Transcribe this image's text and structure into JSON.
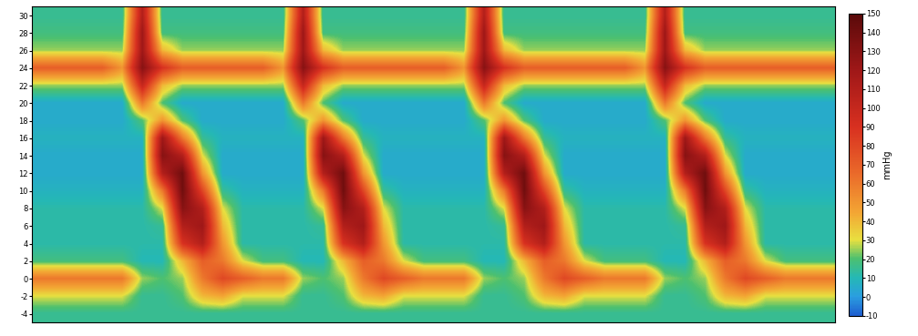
{
  "chart_data": {
    "type": "heatmap",
    "x": [
      2,
      6,
      10,
      14,
      18,
      22,
      26,
      30,
      34,
      38,
      42,
      46,
      50,
      54,
      58,
      62,
      66,
      70,
      74,
      78,
      82,
      86,
      90,
      94,
      98,
      102,
      106,
      110,
      114,
      118,
      122,
      126,
      130,
      134,
      138,
      142,
      146,
      150,
      154,
      158
    ],
    "y": [
      30,
      28,
      26,
      24,
      22,
      20,
      18,
      16,
      14,
      12,
      10,
      8,
      6,
      4,
      2,
      0,
      -2,
      -4
    ],
    "cells": [
      [
        15,
        15,
        15,
        15,
        15,
        110,
        15,
        15,
        15,
        15,
        15,
        15,
        15,
        110,
        15,
        15,
        15,
        15,
        15,
        15,
        15,
        15,
        110,
        15,
        15,
        15,
        15,
        15,
        15,
        15,
        15,
        110,
        15,
        15,
        15,
        15,
        15,
        15,
        15,
        15
      ],
      [
        18,
        18,
        18,
        18,
        18,
        120,
        18,
        18,
        18,
        18,
        18,
        18,
        18,
        120,
        18,
        18,
        18,
        18,
        18,
        18,
        18,
        18,
        120,
        18,
        18,
        18,
        18,
        18,
        18,
        18,
        18,
        120,
        18,
        18,
        18,
        18,
        18,
        18,
        18,
        18
      ],
      [
        25,
        25,
        25,
        25,
        25,
        120,
        40,
        25,
        25,
        25,
        25,
        25,
        25,
        120,
        40,
        25,
        25,
        25,
        25,
        25,
        25,
        25,
        120,
        40,
        25,
        25,
        25,
        25,
        25,
        25,
        25,
        120,
        40,
        25,
        25,
        25,
        25,
        25,
        25,
        25
      ],
      [
        70,
        70,
        70,
        70,
        50,
        130,
        90,
        70,
        70,
        70,
        70,
        70,
        50,
        130,
        90,
        70,
        70,
        70,
        70,
        70,
        70,
        50,
        130,
        90,
        70,
        70,
        70,
        70,
        70,
        70,
        50,
        130,
        90,
        70,
        70,
        70,
        70,
        70,
        70,
        70
      ],
      [
        25,
        25,
        25,
        25,
        25,
        100,
        40,
        25,
        25,
        25,
        25,
        25,
        25,
        100,
        40,
        25,
        25,
        25,
        25,
        25,
        25,
        25,
        100,
        40,
        25,
        25,
        25,
        25,
        25,
        25,
        25,
        100,
        40,
        25,
        25,
        25,
        25,
        25,
        25,
        25
      ],
      [
        5,
        5,
        5,
        5,
        5,
        60,
        20,
        5,
        5,
        5,
        5,
        5,
        5,
        60,
        20,
        5,
        5,
        5,
        5,
        5,
        5,
        5,
        60,
        20,
        5,
        5,
        5,
        5,
        5,
        5,
        5,
        60,
        20,
        5,
        5,
        5,
        5,
        5,
        5,
        5
      ],
      [
        5,
        5,
        5,
        5,
        5,
        20,
        50,
        20,
        5,
        5,
        5,
        5,
        5,
        20,
        50,
        20,
        5,
        5,
        5,
        5,
        5,
        5,
        20,
        50,
        20,
        5,
        5,
        5,
        5,
        5,
        5,
        20,
        50,
        20,
        5,
        5,
        5,
        5,
        5,
        5
      ],
      [
        8,
        8,
        8,
        8,
        8,
        8,
        120,
        60,
        15,
        8,
        8,
        8,
        8,
        8,
        120,
        60,
        15,
        8,
        8,
        8,
        8,
        8,
        8,
        120,
        60,
        15,
        8,
        8,
        8,
        8,
        8,
        8,
        120,
        60,
        15,
        8,
        8,
        8,
        8,
        8
      ],
      [
        5,
        5,
        5,
        5,
        5,
        5,
        130,
        110,
        30,
        5,
        5,
        5,
        5,
        5,
        130,
        110,
        30,
        5,
        5,
        5,
        5,
        5,
        5,
        130,
        110,
        30,
        5,
        5,
        5,
        5,
        5,
        5,
        130,
        110,
        30,
        5,
        5,
        5,
        5,
        5
      ],
      [
        5,
        5,
        5,
        5,
        5,
        5,
        110,
        140,
        50,
        5,
        5,
        5,
        5,
        5,
        110,
        140,
        50,
        5,
        5,
        5,
        5,
        5,
        5,
        110,
        140,
        50,
        5,
        5,
        5,
        5,
        5,
        5,
        110,
        140,
        50,
        5,
        5,
        5,
        5,
        5
      ],
      [
        8,
        8,
        8,
        8,
        8,
        8,
        60,
        140,
        80,
        15,
        8,
        8,
        8,
        8,
        60,
        140,
        80,
        15,
        8,
        8,
        8,
        8,
        8,
        60,
        140,
        80,
        15,
        8,
        8,
        8,
        8,
        8,
        60,
        140,
        80,
        15,
        8,
        8,
        8,
        8
      ],
      [
        12,
        12,
        12,
        12,
        12,
        12,
        30,
        130,
        110,
        30,
        12,
        12,
        12,
        12,
        30,
        130,
        110,
        30,
        12,
        12,
        12,
        12,
        12,
        30,
        130,
        110,
        30,
        12,
        12,
        12,
        12,
        12,
        30,
        130,
        110,
        30,
        12,
        12,
        12,
        12
      ],
      [
        12,
        12,
        12,
        12,
        12,
        12,
        15,
        110,
        120,
        40,
        12,
        12,
        12,
        12,
        15,
        110,
        120,
        40,
        12,
        12,
        12,
        12,
        12,
        15,
        110,
        120,
        40,
        12,
        12,
        12,
        12,
        12,
        15,
        110,
        120,
        40,
        12,
        12,
        12,
        12
      ],
      [
        12,
        12,
        12,
        12,
        12,
        12,
        12,
        90,
        110,
        50,
        12,
        12,
        12,
        12,
        12,
        90,
        110,
        50,
        12,
        12,
        12,
        12,
        12,
        12,
        90,
        110,
        50,
        12,
        12,
        12,
        12,
        12,
        12,
        90,
        110,
        50,
        12,
        12,
        12,
        12
      ],
      [
        18,
        18,
        18,
        18,
        18,
        10,
        10,
        40,
        70,
        60,
        30,
        18,
        18,
        10,
        10,
        40,
        70,
        60,
        30,
        18,
        18,
        18,
        10,
        10,
        40,
        70,
        60,
        30,
        18,
        18,
        18,
        10,
        10,
        40,
        70,
        60,
        30,
        18,
        18,
        18
      ],
      [
        60,
        60,
        60,
        60,
        60,
        25,
        20,
        25,
        60,
        80,
        70,
        60,
        60,
        25,
        20,
        25,
        60,
        80,
        70,
        60,
        60,
        60,
        25,
        20,
        25,
        60,
        80,
        70,
        60,
        60,
        60,
        25,
        20,
        25,
        60,
        80,
        70,
        60,
        60,
        60
      ],
      [
        30,
        30,
        30,
        30,
        30,
        15,
        15,
        20,
        40,
        45,
        30,
        30,
        30,
        15,
        15,
        20,
        40,
        45,
        30,
        30,
        30,
        30,
        15,
        15,
        20,
        40,
        45,
        30,
        30,
        30,
        30,
        15,
        15,
        20,
        40,
        45,
        30,
        30,
        30,
        30
      ],
      [
        15,
        15,
        15,
        15,
        15,
        15,
        15,
        15,
        15,
        15,
        15,
        15,
        15,
        15,
        15,
        15,
        15,
        15,
        15,
        15,
        15,
        15,
        15,
        15,
        15,
        15,
        15,
        15,
        15,
        15,
        15,
        15,
        15,
        15,
        15,
        15,
        15,
        15,
        15,
        15
      ]
    ],
    "xlim": [
      0,
      160
    ],
    "ylim": [
      -5,
      31
    ],
    "yticks": [
      -4,
      -2,
      0,
      2,
      4,
      6,
      8,
      10,
      12,
      14,
      16,
      18,
      20,
      22,
      24,
      26,
      28,
      30
    ],
    "tick_labels": "y",
    "colorbar": {
      "label": "mmHg",
      "range": [
        -10,
        150
      ],
      "ticks": [
        -10,
        0,
        10,
        20,
        30,
        40,
        50,
        60,
        70,
        80,
        90,
        100,
        110,
        120,
        130,
        140,
        150
      ]
    }
  }
}
